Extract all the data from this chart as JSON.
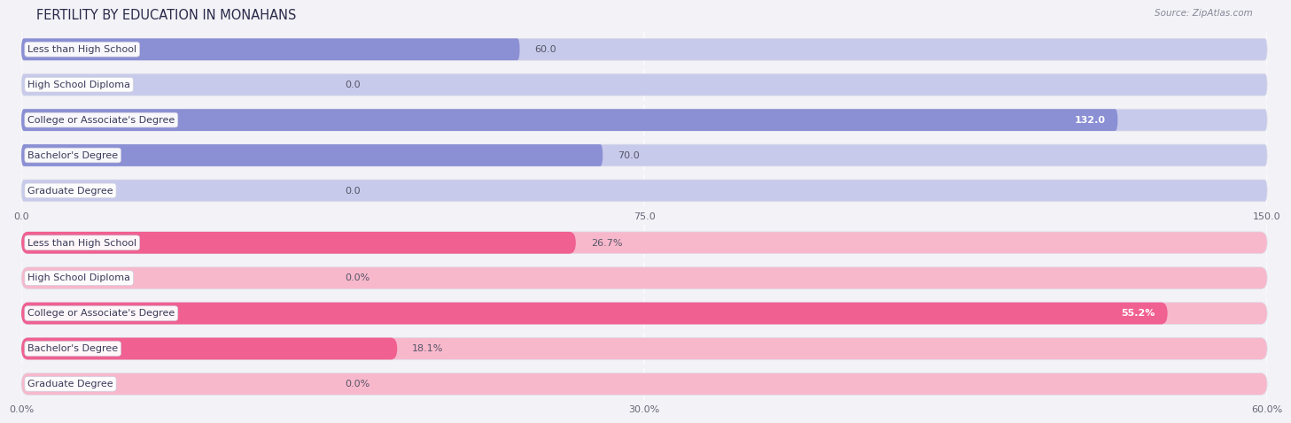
{
  "title": "FERTILITY BY EDUCATION IN MONAHANS",
  "source": "Source: ZipAtlas.com",
  "top_section": {
    "categories": [
      "Less than High School",
      "High School Diploma",
      "College or Associate's Degree",
      "Bachelor's Degree",
      "Graduate Degree"
    ],
    "values": [
      60.0,
      0.0,
      132.0,
      70.0,
      0.0
    ],
    "bar_color": "#8b8fd4",
    "bar_bg_color": "#c8caeb",
    "xlim": [
      0,
      150
    ],
    "xticks": [
      0.0,
      75.0,
      150.0
    ],
    "xtick_labels": [
      "0.0",
      "75.0",
      "150.0"
    ],
    "value_labels": [
      "60.0",
      "0.0",
      "132.0",
      "70.0",
      "0.0"
    ]
  },
  "bottom_section": {
    "categories": [
      "Less than High School",
      "High School Diploma",
      "College or Associate's Degree",
      "Bachelor's Degree",
      "Graduate Degree"
    ],
    "values": [
      26.7,
      0.0,
      55.2,
      18.1,
      0.0
    ],
    "bar_color": "#f06090",
    "bar_bg_color": "#f8b8cc",
    "xlim": [
      0,
      60
    ],
    "xticks": [
      0.0,
      30.0,
      60.0
    ],
    "xtick_labels": [
      "0.0%",
      "30.0%",
      "60.0%"
    ],
    "value_labels": [
      "26.7%",
      "0.0%",
      "55.2%",
      "18.1%",
      "0.0%"
    ]
  },
  "page_bg_color": "#f2f2f7",
  "bar_row_bg_color": "#ebebf2",
  "bar_height": 0.62,
  "title_fontsize": 10.5,
  "label_fontsize": 8,
  "value_fontsize": 8,
  "tick_fontsize": 8
}
